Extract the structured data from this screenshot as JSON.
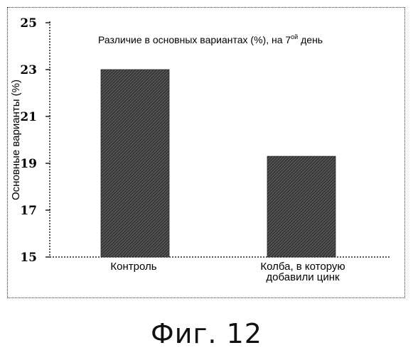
{
  "chart_data": {
    "type": "bar",
    "title": "Различие в основных вариантах (%), на 7",
    "title_sup": "ой",
    "title_tail": " день",
    "ylabel": "Основные варианты (%)",
    "xlabel": "",
    "categories": [
      [
        "Контроль"
      ],
      [
        "Колба, в которую",
        "добавили цинк"
      ]
    ],
    "values": [
      23.0,
      19.3
    ],
    "ylim": [
      15,
      25
    ],
    "yticks": [
      15,
      17,
      19,
      21,
      23,
      25
    ],
    "grid": false,
    "legend": "none",
    "bar_color": "#3a3a3a"
  },
  "caption": "Фиг. 12"
}
